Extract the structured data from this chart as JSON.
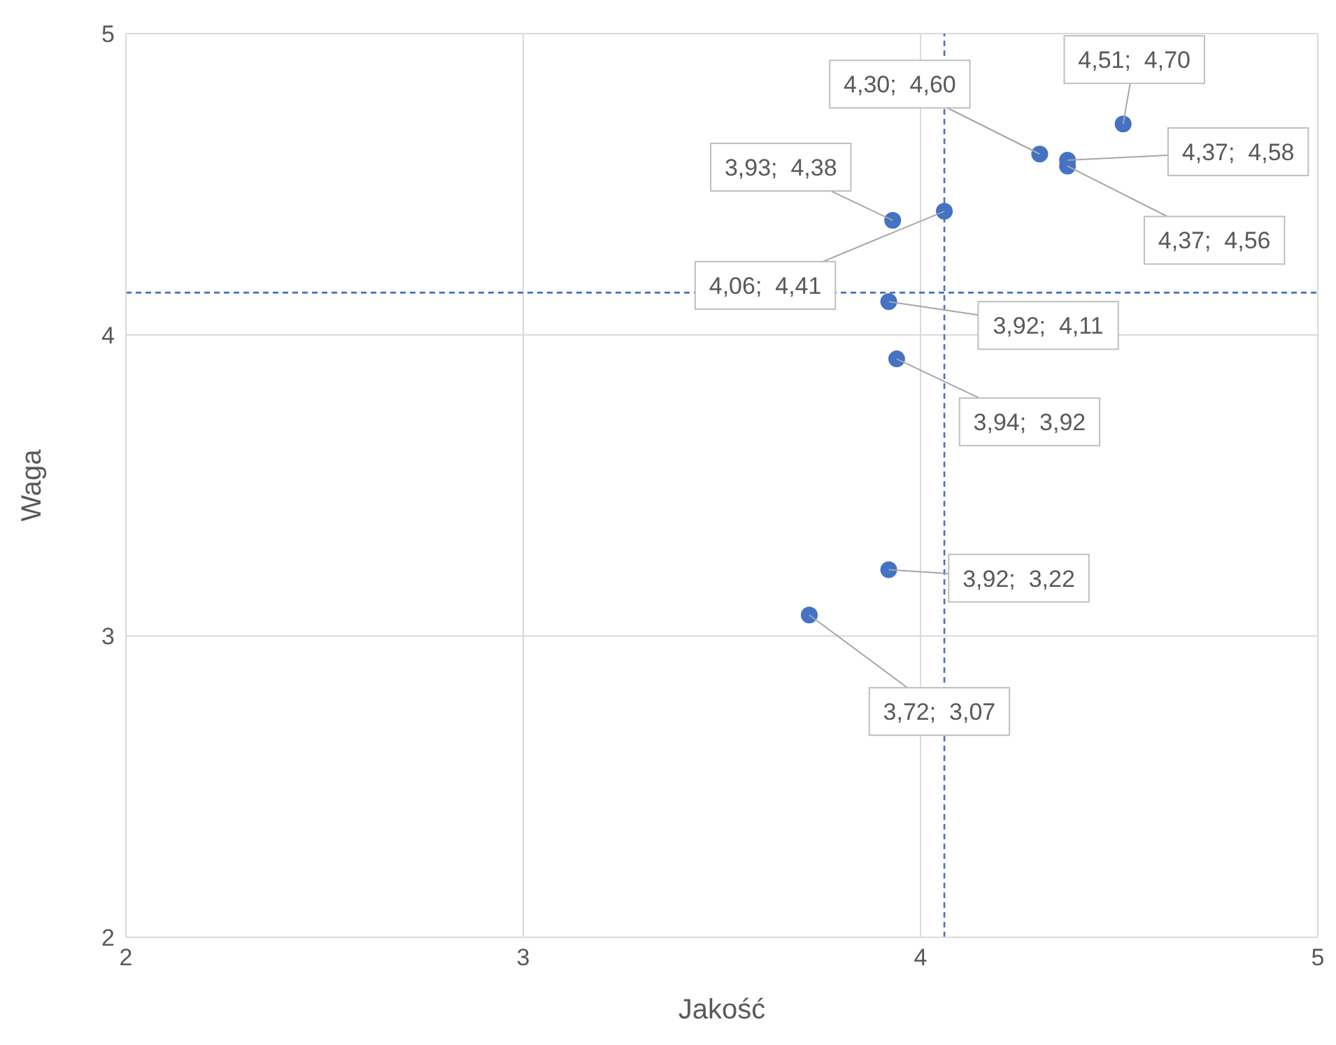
{
  "chart_data": {
    "type": "scatter",
    "xlabel": "Jakość",
    "ylabel": "Waga",
    "x": [
      4.51,
      4.3,
      4.37,
      4.37,
      3.93,
      4.06,
      3.92,
      3.94,
      3.92,
      3.72
    ],
    "values": [
      4.7,
      4.6,
      4.58,
      4.56,
      4.38,
      4.41,
      4.11,
      3.92,
      3.22,
      3.07
    ],
    "value_labels": [
      "4,51;  4,70",
      "4,30;  4,60",
      "4,37;  4,58",
      "4,37;  4,56",
      "3,93;  4,38",
      "4,06;  4,41",
      "3,92;  4,11",
      "3,94;  3,92",
      "3,92;  3,22",
      "3,72;  3,07"
    ],
    "color": "#4472c4",
    "marker": "circle",
    "xlim": [
      2,
      5
    ],
    "xticks": [
      2,
      3,
      4,
      5
    ],
    "ylim": [
      2,
      5
    ],
    "yticks": [
      2,
      3,
      4,
      5
    ],
    "grid": true,
    "legend": false,
    "ref_lines": [
      {
        "axis": "x",
        "value": 4.06,
        "color": "#4472c4",
        "line_style": "dashed"
      },
      {
        "axis": "y",
        "value": 4.14,
        "color": "#4472c4",
        "line_style": "dashed"
      }
    ]
  }
}
